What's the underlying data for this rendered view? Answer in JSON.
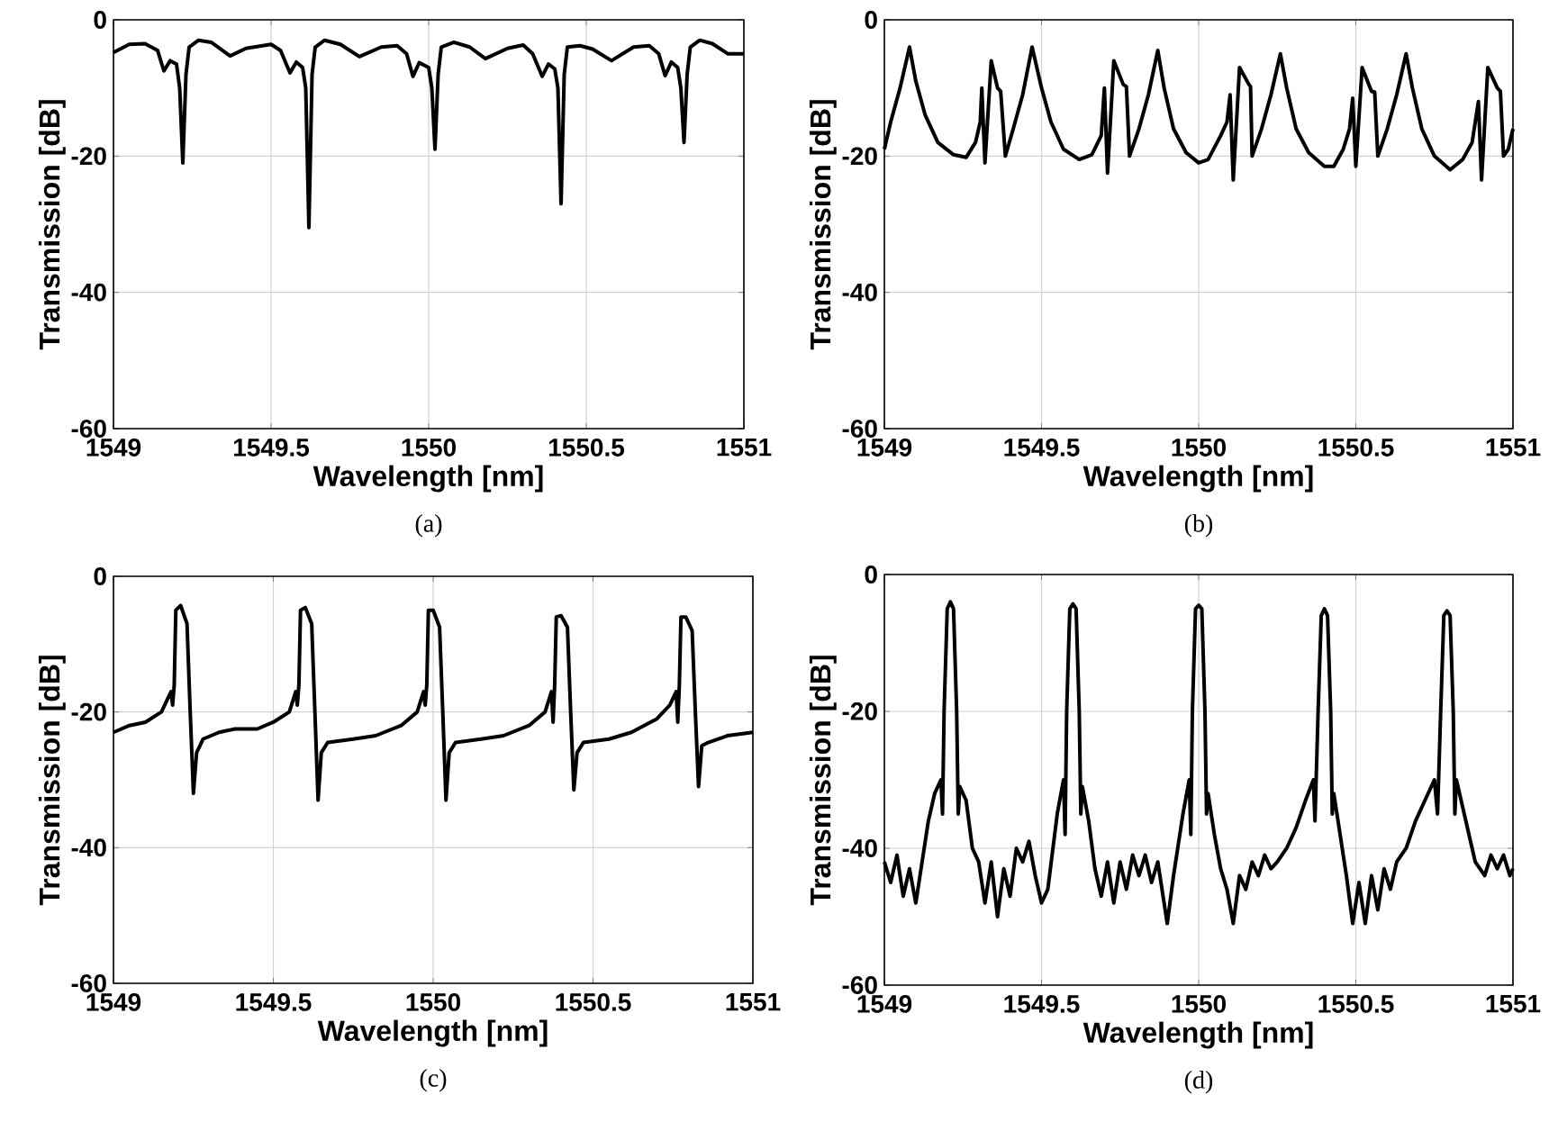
{
  "chart_data": [
    {
      "type": "line",
      "xlabel": "Wavelength [nm]",
      "ylabel": "Transmission [dB]",
      "annotations": [
        "(a)"
      ],
      "xlim": [
        1549,
        1551
      ],
      "ylim": [
        -60,
        0
      ],
      "xticks": [
        1549,
        1549.5,
        1550,
        1550.5,
        1551
      ],
      "yticks": [
        -60,
        -40,
        -20,
        0
      ],
      "grid": true,
      "series": [
        {
          "color": "#000000",
          "x": [
            1549,
            1549.05,
            1549.1,
            1549.14,
            1549.16,
            1549.18,
            1549.2,
            1549.21,
            1549.22,
            1549.23,
            1549.24,
            1549.27,
            1549.31,
            1549.37,
            1549.42,
            1549.5,
            1549.53,
            1549.56,
            1549.58,
            1549.6,
            1549.61,
            1549.62,
            1549.63,
            1549.64,
            1549.67,
            1549.72,
            1549.78,
            1549.85,
            1549.9,
            1549.93,
            1549.95,
            1549.97,
            1550.0,
            1550.01,
            1550.02,
            1550.03,
            1550.04,
            1550.08,
            1550.13,
            1550.18,
            1550.25,
            1550.3,
            1550.33,
            1550.36,
            1550.38,
            1550.4,
            1550.41,
            1550.42,
            1550.43,
            1550.44,
            1550.48,
            1550.52,
            1550.58,
            1550.65,
            1550.7,
            1550.73,
            1550.75,
            1550.77,
            1550.79,
            1550.8,
            1550.81,
            1550.82,
            1550.83,
            1550.86,
            1550.9,
            1550.95,
            1551
          ],
          "values": [
            -4.8,
            -3.6,
            -3.5,
            -4.5,
            -7.5,
            -6,
            -6.5,
            -10,
            -21,
            -8,
            -4,
            -3,
            -3.3,
            -5.3,
            -4.2,
            -3.6,
            -4.5,
            -7.8,
            -6.2,
            -7,
            -10,
            -30.5,
            -8,
            -4,
            -3,
            -3.6,
            -5.4,
            -4,
            -3.8,
            -5,
            -8.3,
            -6.3,
            -7,
            -10,
            -19,
            -8,
            -4,
            -3.3,
            -4,
            -5.7,
            -4.2,
            -3.7,
            -5,
            -8.3,
            -6.5,
            -7.2,
            -10,
            -27,
            -8,
            -4,
            -3.8,
            -4.3,
            -6,
            -4,
            -3.8,
            -5,
            -8.2,
            -6.2,
            -7,
            -10,
            -18,
            -8,
            -4,
            -3,
            -3.5,
            -5,
            -5
          ]
        }
      ]
    },
    {
      "type": "line",
      "xlabel": "Wavelength [nm]",
      "ylabel": "Transmission [dB]",
      "annotations": [
        "(b)"
      ],
      "xlim": [
        1549,
        1551
      ],
      "ylim": [
        -60,
        0
      ],
      "xticks": [
        1549,
        1549.5,
        1550,
        1550.5,
        1551
      ],
      "yticks": [
        -60,
        -40,
        -20,
        0
      ],
      "grid": true,
      "series": [
        {
          "color": "#000000",
          "x": [
            1549,
            1549.02,
            1549.05,
            1549.08,
            1549.1,
            1549.13,
            1549.17,
            1549.22,
            1549.26,
            1549.29,
            1549.305,
            1549.31,
            1549.32,
            1549.34,
            1549.36,
            1549.37,
            1549.385,
            1549.41,
            1549.44,
            1549.47,
            1549.5,
            1549.53,
            1549.57,
            1549.62,
            1549.66,
            1549.69,
            1549.7,
            1549.71,
            1549.73,
            1549.76,
            1549.77,
            1549.78,
            1549.81,
            1549.84,
            1549.87,
            1549.89,
            1549.92,
            1549.96,
            1550.0,
            1550.03,
            1550.07,
            1550.09,
            1550.1,
            1550.11,
            1550.13,
            1550.16,
            1550.165,
            1550.17,
            1550.2,
            1550.23,
            1550.26,
            1550.28,
            1550.31,
            1550.35,
            1550.4,
            1550.43,
            1550.46,
            1550.48,
            1550.49,
            1550.5,
            1550.52,
            1550.55,
            1550.56,
            1550.57,
            1550.6,
            1550.63,
            1550.66,
            1550.68,
            1550.71,
            1550.75,
            1550.8,
            1550.84,
            1550.87,
            1550.88,
            1550.89,
            1550.9,
            1550.92,
            1550.95,
            1550.96,
            1550.97,
            1550.985,
            1551
          ],
          "values": [
            -19,
            -15,
            -10,
            -4,
            -9,
            -14,
            -18,
            -19.8,
            -20.2,
            -18,
            -15,
            -10,
            -21,
            -6,
            -10,
            -10.5,
            -20,
            -16,
            -11,
            -4,
            -10,
            -15,
            -19,
            -20.5,
            -19.8,
            -17,
            -10,
            -22.5,
            -6,
            -9.5,
            -9.8,
            -20,
            -16,
            -11,
            -4.5,
            -10,
            -16,
            -19.5,
            -21,
            -20.5,
            -17,
            -15,
            -11,
            -23.5,
            -7,
            -9.5,
            -9.8,
            -20,
            -16,
            -11,
            -5,
            -10,
            -16,
            -19.5,
            -21.5,
            -21.5,
            -19,
            -16,
            -11.5,
            -21.5,
            -7,
            -10.5,
            -10.6,
            -20,
            -16,
            -11,
            -5,
            -10,
            -16,
            -20,
            -22,
            -20.5,
            -18,
            -15,
            -12,
            -23.5,
            -7,
            -10,
            -10.5,
            -20,
            -19,
            -16
          ]
        }
      ]
    },
    {
      "type": "line",
      "xlabel": "Wavelength [nm]",
      "ylabel": "Transmission [dB]",
      "annotations": [
        "(c)"
      ],
      "xlim": [
        1549,
        1551
      ],
      "ylim": [
        -60,
        0
      ],
      "xticks": [
        1549,
        1549.5,
        1550,
        1550.5,
        1551
      ],
      "yticks": [
        -60,
        -40,
        -20,
        0
      ],
      "grid": true,
      "series": [
        {
          "color": "#000000",
          "x": [
            1549,
            1549.05,
            1549.1,
            1549.15,
            1549.18,
            1549.185,
            1549.19,
            1549.195,
            1549.21,
            1549.23,
            1549.24,
            1549.25,
            1549.26,
            1549.28,
            1549.33,
            1549.38,
            1549.45,
            1549.5,
            1549.55,
            1549.57,
            1549.575,
            1549.58,
            1549.585,
            1549.6,
            1549.62,
            1549.63,
            1549.64,
            1549.65,
            1549.67,
            1549.75,
            1549.82,
            1549.9,
            1549.95,
            1549.97,
            1549.975,
            1549.98,
            1549.985,
            1550.0,
            1550.02,
            1550.03,
            1550.04,
            1550.05,
            1550.07,
            1550.15,
            1550.22,
            1550.3,
            1550.35,
            1550.37,
            1550.375,
            1550.38,
            1550.385,
            1550.4,
            1550.42,
            1550.43,
            1550.44,
            1550.45,
            1550.47,
            1550.55,
            1550.62,
            1550.7,
            1550.74,
            1550.76,
            1550.765,
            1550.77,
            1550.775,
            1550.79,
            1550.81,
            1550.82,
            1550.83,
            1550.84,
            1550.86,
            1550.92,
            1551
          ],
          "values": [
            -23,
            -22,
            -21.5,
            -20,
            -17,
            -19,
            -16,
            -5,
            -4.3,
            -7,
            -20,
            -32,
            -26,
            -24,
            -23,
            -22.5,
            -22.5,
            -21.5,
            -20,
            -17,
            -19,
            -16,
            -5,
            -4.6,
            -7,
            -20,
            -33,
            -26,
            -24.5,
            -24,
            -23.5,
            -22,
            -20,
            -17,
            -19,
            -16,
            -5,
            -5,
            -7.5,
            -20,
            -33,
            -26,
            -24.5,
            -24,
            -23.5,
            -22,
            -20,
            -17,
            -21.5,
            -16,
            -6,
            -5.8,
            -7.5,
            -20,
            -31.5,
            -26,
            -24.5,
            -24,
            -23,
            -21,
            -19,
            -17,
            -21.5,
            -16,
            -6,
            -6,
            -8,
            -20,
            -31,
            -25,
            -24.5,
            -23.5,
            -23
          ]
        }
      ]
    },
    {
      "type": "line",
      "xlabel": "Wavelength [nm]",
      "ylabel": "Transmission [dB]",
      "annotations": [
        "(d)"
      ],
      "xlim": [
        1549,
        1551
      ],
      "ylim": [
        -60,
        0
      ],
      "xticks": [
        1549,
        1549.5,
        1550,
        1550.5,
        1551
      ],
      "yticks": [
        -60,
        -40,
        -20,
        0
      ],
      "grid": true,
      "series": [
        {
          "color": "#000000",
          "x": [
            1549,
            1549.02,
            1549.04,
            1549.06,
            1549.08,
            1549.1,
            1549.12,
            1549.14,
            1549.16,
            1549.18,
            1549.185,
            1549.19,
            1549.2,
            1549.21,
            1549.22,
            1549.23,
            1549.235,
            1549.24,
            1549.26,
            1549.28,
            1549.3,
            1549.32,
            1549.34,
            1549.36,
            1549.38,
            1549.4,
            1549.42,
            1549.44,
            1549.46,
            1549.48,
            1549.5,
            1549.52,
            1549.55,
            1549.57,
            1549.575,
            1549.58,
            1549.59,
            1549.6,
            1549.61,
            1549.62,
            1549.625,
            1549.63,
            1549.65,
            1549.67,
            1549.69,
            1549.71,
            1549.73,
            1549.75,
            1549.77,
            1549.79,
            1549.81,
            1549.83,
            1549.85,
            1549.87,
            1549.9,
            1549.92,
            1549.95,
            1549.97,
            1549.975,
            1549.98,
            1549.99,
            1550.0,
            1550.01,
            1550.02,
            1550.025,
            1550.03,
            1550.05,
            1550.07,
            1550.09,
            1550.11,
            1550.13,
            1550.15,
            1550.17,
            1550.19,
            1550.21,
            1550.23,
            1550.25,
            1550.28,
            1550.31,
            1550.34,
            1550.365,
            1550.37,
            1550.38,
            1550.39,
            1550.4,
            1550.41,
            1550.42,
            1550.425,
            1550.43,
            1550.45,
            1550.47,
            1550.49,
            1550.51,
            1550.53,
            1550.55,
            1550.57,
            1550.59,
            1550.61,
            1550.63,
            1550.66,
            1550.69,
            1550.72,
            1550.75,
            1550.76,
            1550.77,
            1550.78,
            1550.79,
            1550.8,
            1550.81,
            1550.815,
            1550.82,
            1550.85,
            1550.88,
            1550.91,
            1550.93,
            1550.95,
            1550.97,
            1550.99,
            1551
          ],
          "values": [
            -42,
            -45,
            -41,
            -47,
            -43,
            -48,
            -42,
            -36,
            -32,
            -30,
            -35,
            -20,
            -5,
            -4,
            -5,
            -20,
            -35,
            -31,
            -33,
            -40,
            -42,
            -48,
            -42,
            -50,
            -43,
            -47,
            -40,
            -42,
            -39,
            -44,
            -48,
            -46,
            -35,
            -30,
            -38,
            -20,
            -5,
            -4.3,
            -5,
            -20,
            -35,
            -31,
            -36,
            -43,
            -47,
            -42,
            -48,
            -42,
            -46,
            -41,
            -44,
            -41,
            -45,
            -42,
            -51,
            -44,
            -35,
            -30,
            -38,
            -20,
            -5,
            -4.5,
            -5,
            -20,
            -35,
            -32,
            -38,
            -43,
            -46,
            -51,
            -44,
            -46,
            -42,
            -44,
            -41,
            -43,
            -42,
            -40,
            -37,
            -33,
            -30,
            -36,
            -20,
            -6,
            -5,
            -6,
            -20,
            -35,
            -32,
            -38,
            -44,
            -51,
            -45,
            -51,
            -44,
            -49,
            -43,
            -46,
            -42,
            -40,
            -36,
            -33,
            -30,
            -35,
            -20,
            -6,
            -5.3,
            -6,
            -20,
            -35,
            -30,
            -36,
            -42,
            -44,
            -41,
            -43,
            -41,
            -44,
            -43
          ]
        }
      ]
    }
  ]
}
